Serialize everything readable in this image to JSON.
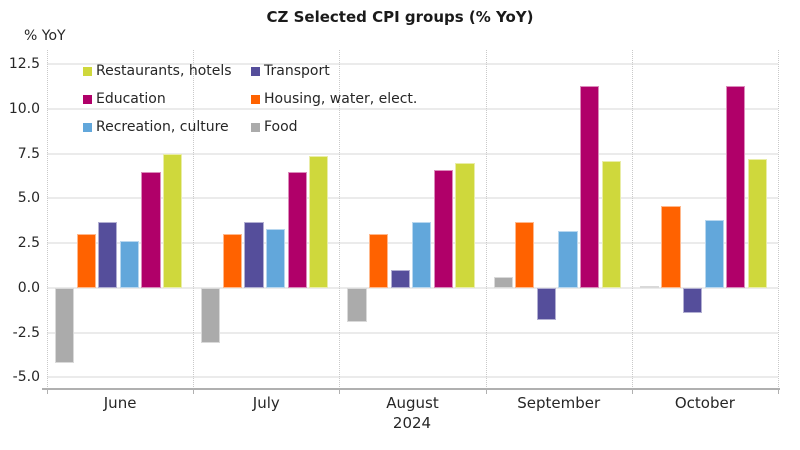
{
  "title": "CZ Selected CPI groups (% YoY)",
  "y_axis_label": "% YoY",
  "x_axis_year": "2024",
  "chart_data": {
    "type": "bar",
    "title": "CZ Selected CPI groups (% YoY)",
    "ylabel": "% YoY",
    "xlabel": "2024",
    "categories": [
      "June",
      "July",
      "August",
      "September",
      "October"
    ],
    "y_ticks": [
      12.5,
      10.0,
      7.5,
      5.0,
      2.5,
      0.0,
      -2.5,
      -5.0
    ],
    "ylim": [
      -5.65,
      13.3
    ],
    "grid": true,
    "legend_position": "top-left",
    "legend_rows": [
      [
        "Restaurants, hotels",
        "Transport"
      ],
      [
        "Education",
        "Housing, water, elect."
      ],
      [
        "Recreation, culture",
        "Food"
      ]
    ],
    "series": [
      {
        "name": "Food",
        "color": "#ababab",
        "values": [
          -4.2,
          -3.1,
          -1.9,
          0.6,
          0.1
        ]
      },
      {
        "name": "Housing, water, elect.",
        "color": "#ff6200",
        "values": [
          3.0,
          3.0,
          3.0,
          3.7,
          4.6
        ]
      },
      {
        "name": "Transport",
        "color": "#554e9b",
        "values": [
          3.7,
          3.7,
          1.0,
          -1.8,
          -1.4
        ]
      },
      {
        "name": "Recreation, culture",
        "color": "#62a7db",
        "values": [
          2.6,
          3.3,
          3.7,
          3.2,
          3.8
        ]
      },
      {
        "name": "Education",
        "color": "#b00069",
        "values": [
          6.5,
          6.5,
          6.6,
          11.3,
          11.3
        ]
      },
      {
        "name": "Restaurants, hotels",
        "color": "#cfd83c",
        "values": [
          7.5,
          7.4,
          7.0,
          7.1,
          7.2
        ]
      }
    ],
    "axis_colors": {
      "gridline": "#ebebeb",
      "axis_line": "#b0b0b0",
      "tick_text": "#262626"
    }
  }
}
